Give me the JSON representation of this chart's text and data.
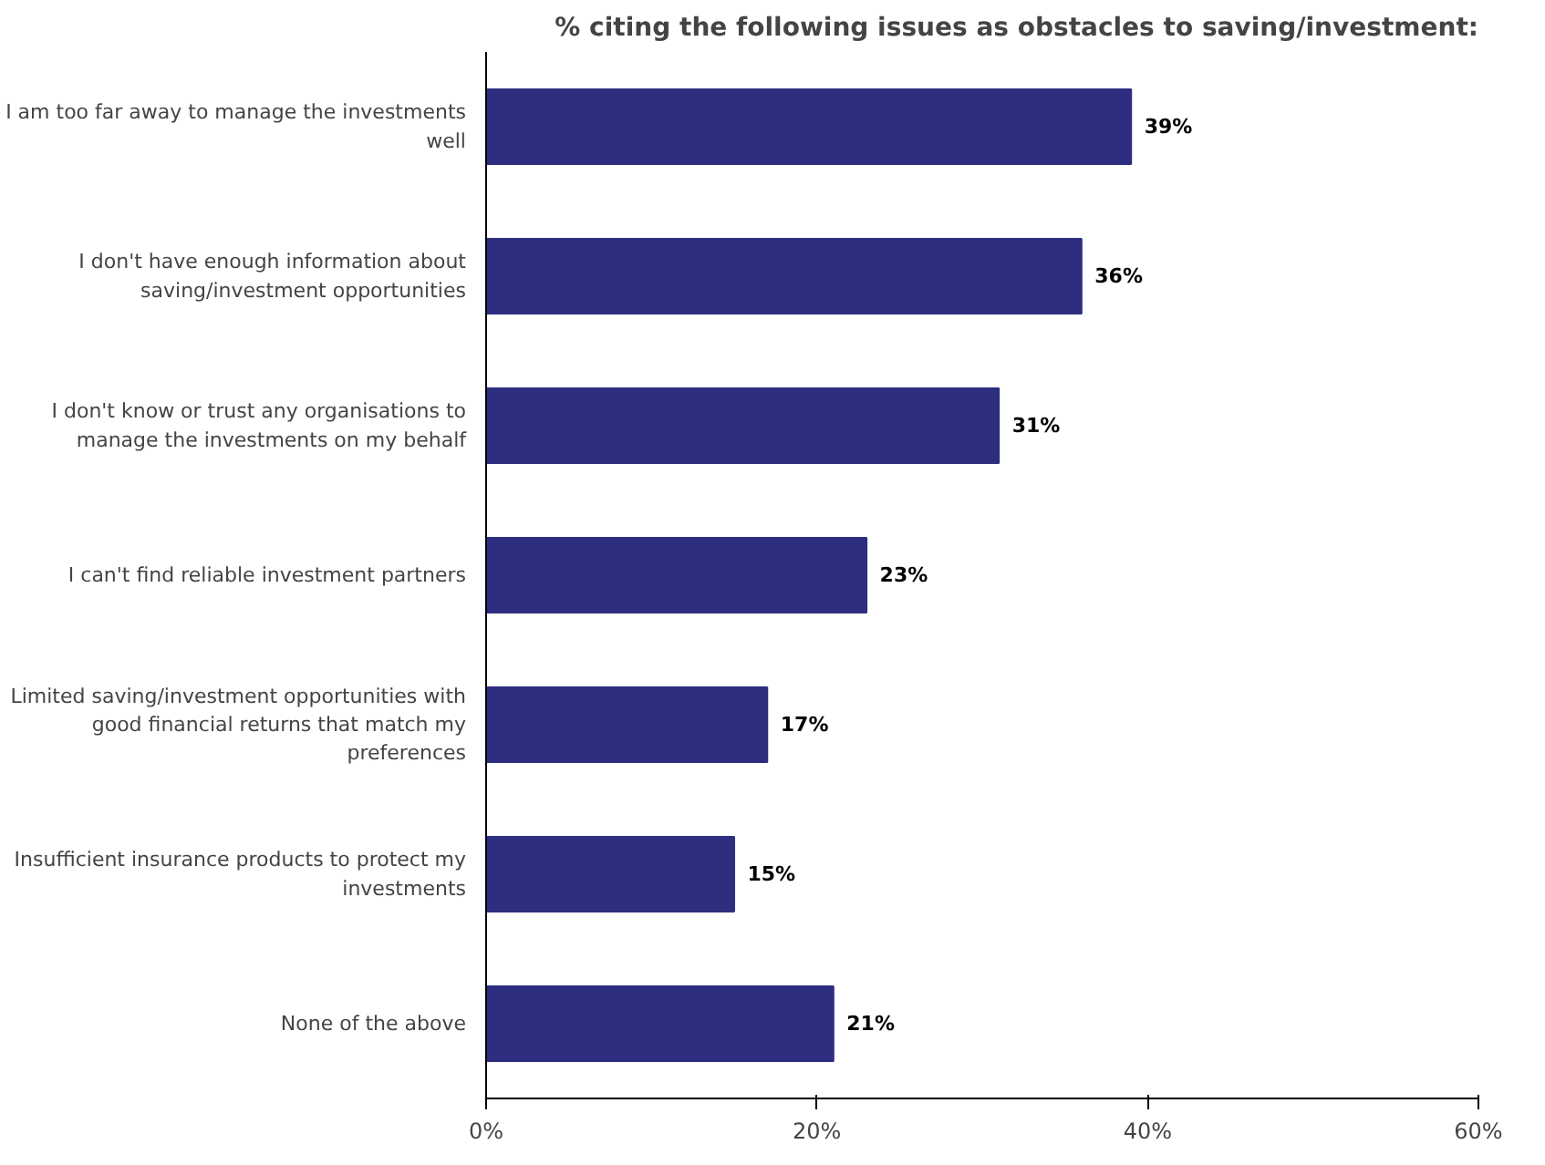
{
  "chart_data": {
    "type": "bar",
    "orientation": "horizontal",
    "title": "% citing the following issues as obstacles to saving/investment:",
    "categories": [
      "I am too far away to manage the investments well",
      "I don't have enough information about saving/investment opportunities",
      "I don't know or trust any organisations to manage the investments on my behalf",
      "I can't find reliable investment partners",
      "Limited saving/investment opportunities with good financial returns that match my preferences",
      "Insufficient insurance products to protect my investments",
      "None of the above"
    ],
    "values": [
      39,
      36,
      31,
      23,
      17,
      15,
      21
    ],
    "color": "#2e2e80",
    "value_labels": [
      "39%",
      "36%",
      "31%",
      "23%",
      "17%",
      "15%",
      "21%"
    ],
    "xlim": [
      0,
      60
    ],
    "xticks": [
      {
        "value": 0,
        "label": "0%"
      },
      {
        "value": 20,
        "label": "20%"
      },
      {
        "value": 40,
        "label": "40%"
      },
      {
        "value": 60,
        "label": "60%"
      }
    ],
    "grid": false
  }
}
